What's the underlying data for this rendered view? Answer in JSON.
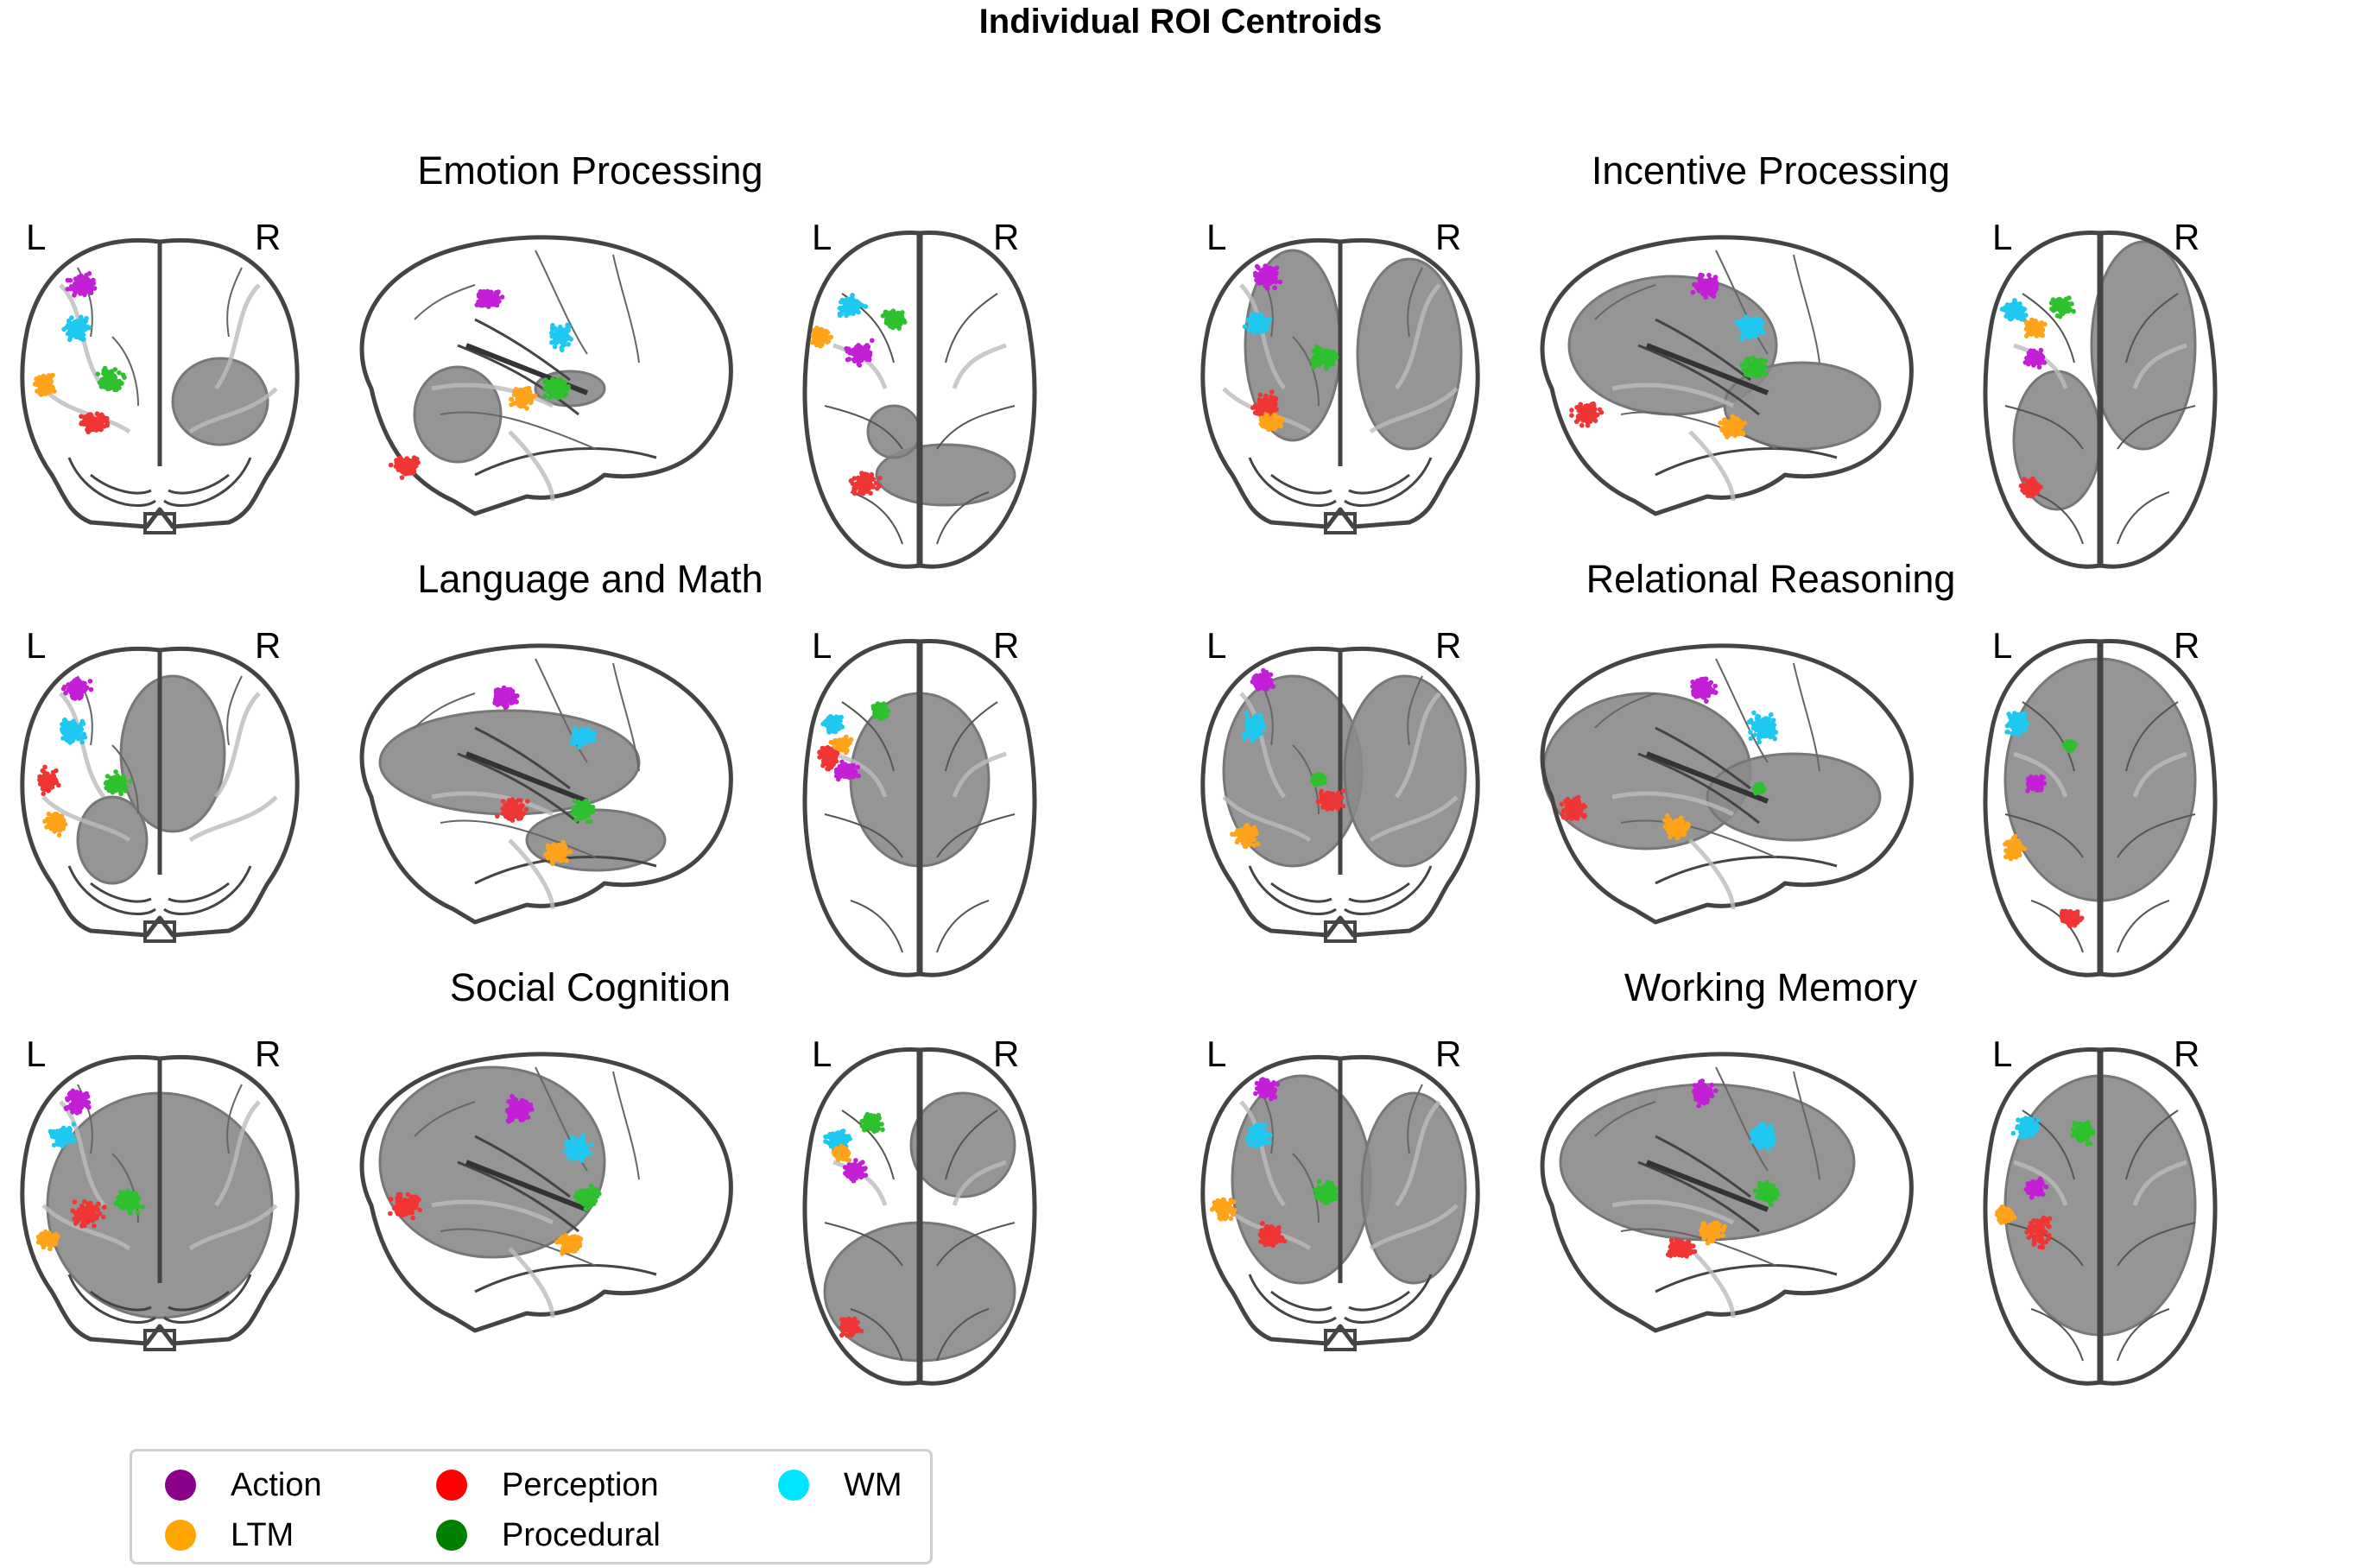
{
  "title": "Individual ROI Centroids",
  "hemisphere_labels": {
    "left": "L",
    "right": "R"
  },
  "categories": [
    {
      "key": "action",
      "label": "Action",
      "color": "#8b008b"
    },
    {
      "key": "ltm",
      "label": "LTM",
      "color": "#ffa500"
    },
    {
      "key": "perception",
      "label": "Perception",
      "color": "#ff0000"
    },
    {
      "key": "procedural",
      "label": "Procedural",
      "color": "#008000"
    },
    {
      "key": "wm",
      "label": "WM",
      "color": "#00e5ff"
    }
  ],
  "scatter_colors": {
    "action": "#c21fd6",
    "ltm": "#ffa31a",
    "perception": "#f03535",
    "procedural": "#2ec02e",
    "wm": "#1fc8f0"
  },
  "panels": [
    {
      "title": "Emotion Processing"
    },
    {
      "title": "Incentive Processing"
    },
    {
      "title": "Language and Math"
    },
    {
      "title": "Relational Reasoning"
    },
    {
      "title": "Social Cognition"
    },
    {
      "title": "Working Memory"
    }
  ]
}
